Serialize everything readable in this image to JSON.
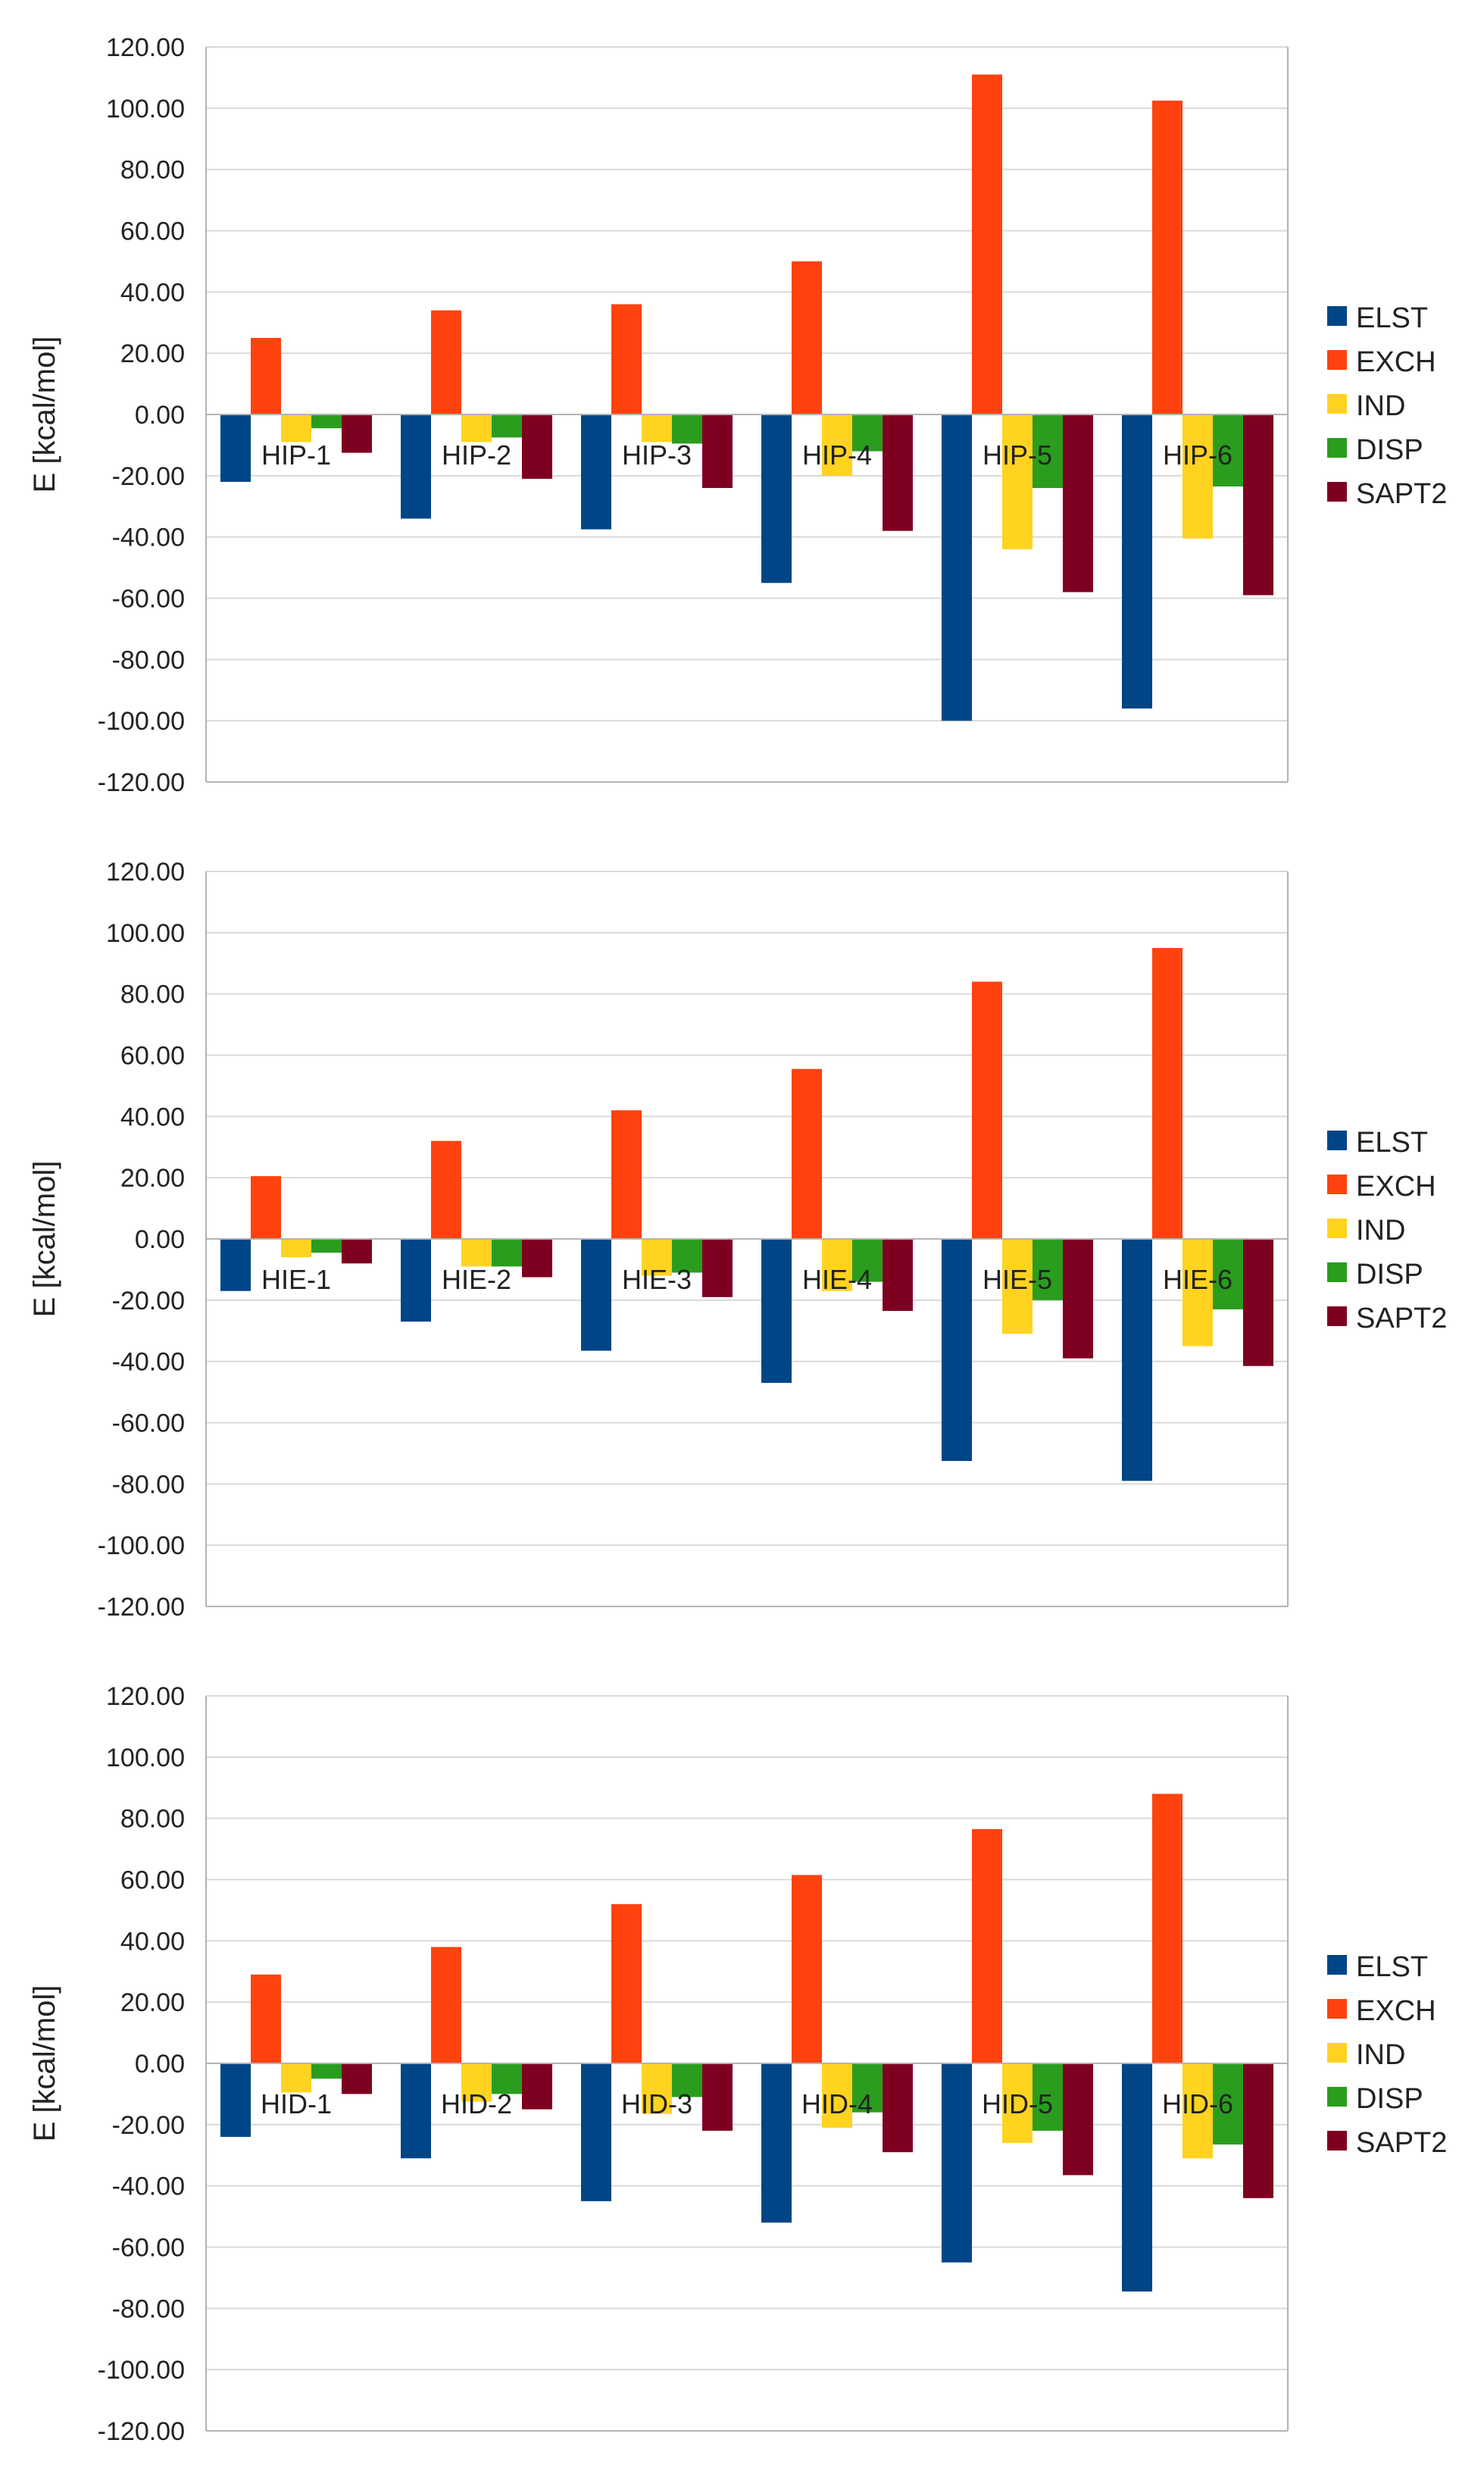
{
  "colors": {
    "ELST": "#004586",
    "EXCH": "#ff420e",
    "IND": "#ffd320",
    "DISP": "#2a9d1f",
    "SAPT2": "#7e0021",
    "grid": "#d9d9d9",
    "axis": "#b3b3b3",
    "text": "#222222"
  },
  "chart_data": [
    {
      "type": "bar",
      "title": "",
      "xlabel": "",
      "ylabel": "E [kcal/mol]",
      "ylim": [
        -120,
        120
      ],
      "ytick_step": 20,
      "ytick_labels": [
        "120.00",
        "100.00",
        "80.00",
        "60.00",
        "40.00",
        "20.00",
        "0.00",
        "-20.00",
        "-40.00",
        "-60.00",
        "-80.00",
        "-100.00",
        "-120.00"
      ],
      "legend_position": "right",
      "categories": [
        "HIP-1",
        "HIP-2",
        "HIP-3",
        "HIP-4",
        "HIP-5",
        "HIP-6"
      ],
      "series": [
        {
          "name": "ELST",
          "values": [
            -22,
            -34,
            -37.5,
            -55,
            -100,
            -96
          ]
        },
        {
          "name": "EXCH",
          "values": [
            25,
            34,
            36,
            50,
            111,
            102.5
          ]
        },
        {
          "name": "IND",
          "values": [
            -9,
            -9,
            -9,
            -20,
            -44,
            -40.5
          ]
        },
        {
          "name": "DISP",
          "values": [
            -4.5,
            -7.5,
            -9.5,
            -12,
            -24,
            -23.5
          ]
        },
        {
          "name": "SAPT2",
          "values": [
            -12.5,
            -21,
            -24,
            -38,
            -58,
            -59
          ]
        }
      ]
    },
    {
      "type": "bar",
      "title": "",
      "xlabel": "",
      "ylabel": "E [kcal/mol]",
      "ylim": [
        -120,
        120
      ],
      "ytick_step": 20,
      "ytick_labels": [
        "120.00",
        "100.00",
        "80.00",
        "60.00",
        "40.00",
        "20.00",
        "0.00",
        "-20.00",
        "-40.00",
        "-60.00",
        "-80.00",
        "-100.00",
        "-120.00"
      ],
      "legend_position": "right",
      "categories": [
        "HIE-1",
        "HIE-2",
        "HIE-3",
        "HIE-4",
        "HIE-5",
        "HIE-6"
      ],
      "series": [
        {
          "name": "ELST",
          "values": [
            -17,
            -27,
            -36.5,
            -47,
            -72.5,
            -79
          ]
        },
        {
          "name": "EXCH",
          "values": [
            20.5,
            32,
            42,
            55.5,
            84,
            95
          ]
        },
        {
          "name": "IND",
          "values": [
            -6,
            -9,
            -12,
            -17,
            -31,
            -35
          ]
        },
        {
          "name": "DISP",
          "values": [
            -4.5,
            -9,
            -11,
            -14,
            -20,
            -23
          ]
        },
        {
          "name": "SAPT2",
          "values": [
            -8,
            -12.5,
            -19,
            -23.5,
            -39,
            -41.5
          ]
        }
      ]
    },
    {
      "type": "bar",
      "title": "",
      "xlabel": "",
      "ylabel": "E [kcal/mol]",
      "ylim": [
        -120,
        120
      ],
      "ytick_step": 20,
      "ytick_labels": [
        "120.00",
        "100.00",
        "80.00",
        "60.00",
        "40.00",
        "20.00",
        "0.00",
        "-20.00",
        "-40.00",
        "-60.00",
        "-80.00",
        "-100.00",
        "-120.00"
      ],
      "legend_position": "right",
      "categories": [
        "HID-1",
        "HID-2",
        "HID-3",
        "HID-4",
        "HID-5",
        "HID-6"
      ],
      "series": [
        {
          "name": "ELST",
          "values": [
            -24,
            -31,
            -45,
            -52,
            -65,
            -74.5
          ]
        },
        {
          "name": "EXCH",
          "values": [
            29,
            38,
            52,
            61.5,
            76.5,
            88
          ]
        },
        {
          "name": "IND",
          "values": [
            -9.5,
            -12.5,
            -16.5,
            -21,
            -26,
            -31
          ]
        },
        {
          "name": "DISP",
          "values": [
            -5,
            -10,
            -11,
            -16,
            -22,
            -26.5
          ]
        },
        {
          "name": "SAPT2",
          "values": [
            -10,
            -15,
            -22,
            -29,
            -36.5,
            -44
          ]
        }
      ]
    }
  ]
}
